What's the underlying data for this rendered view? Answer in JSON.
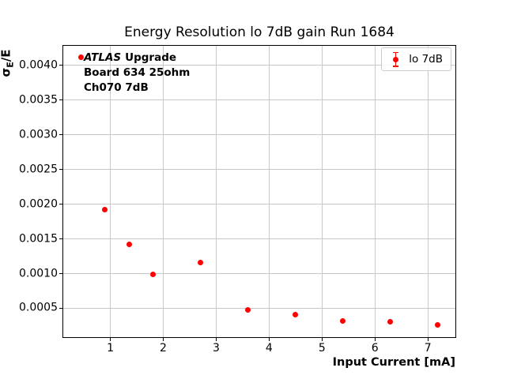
{
  "ui": {
    "title": "Energy Resolution lo 7dB gain Run 1684",
    "xlabel": "Input Current [mA]",
    "ylabel": {
      "sigma": "σ",
      "subscript": "E",
      "rest": "/E"
    },
    "legend": {
      "label": "lo 7dB",
      "marker": "red-errorbar-dot"
    },
    "annotation": {
      "experiment_italic": "ATLAS",
      "experiment_suffix": "Upgrade",
      "line2": "Board 634 25ohm",
      "line3": "Ch070 7dB"
    },
    "colors": {
      "series": "#ff0000",
      "grid": "#c8c8c8",
      "axes": "#000000",
      "legend_border": "#cccccc",
      "text": "#000000",
      "background": "#ffffff"
    }
  },
  "chart_data": {
    "type": "scatter",
    "title": "Energy Resolution lo 7dB gain Run 1684",
    "xlabel": "Input Current [mA]",
    "ylabel": "σ_E/E",
    "legend_position": "upper right",
    "grid": true,
    "xlim": [
      0.11,
      7.52
    ],
    "ylim": [
      8.5e-05,
      0.00428
    ],
    "x_ticks": [
      1,
      2,
      3,
      4,
      5,
      6,
      7
    ],
    "x_tick_labels": [
      "1",
      "2",
      "3",
      "4",
      "5",
      "6",
      "7"
    ],
    "y_ticks": [
      0.0005,
      0.001,
      0.0015,
      0.002,
      0.0025,
      0.003,
      0.0035,
      0.004
    ],
    "y_tick_labels": [
      "0.0005",
      "0.0010",
      "0.0015",
      "0.0020",
      "0.0025",
      "0.0030",
      "0.0035",
      "0.0040"
    ],
    "series": [
      {
        "name": "lo 7dB",
        "color": "#ff0000",
        "marker": "o-with-errorbar",
        "x": [
          0.45,
          0.9,
          1.35,
          1.81,
          2.7,
          3.6,
          4.5,
          5.39,
          6.29,
          7.19
        ],
        "y": [
          0.00411,
          0.00192,
          0.00142,
          0.00099,
          0.00116,
          0.00048,
          0.00041,
          0.00032,
          0.00031,
          0.00026
        ]
      }
    ]
  }
}
